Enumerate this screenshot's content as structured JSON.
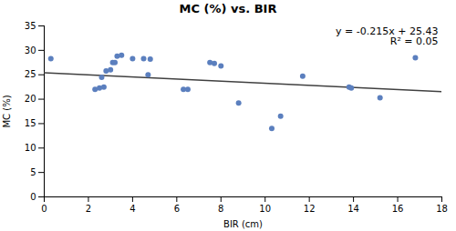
{
  "chart_data": {
    "type": "scatter",
    "title": "MC (%) vs. BIR",
    "xlabel": "BIR (cm)",
    "ylabel": "MC (%)",
    "x": [
      0.3,
      2.3,
      2.5,
      2.6,
      2.7,
      2.8,
      3.0,
      3.1,
      3.2,
      3.3,
      3.5,
      4.0,
      4.5,
      4.7,
      4.8,
      6.3,
      6.5,
      7.5,
      7.7,
      8.0,
      8.8,
      10.3,
      10.7,
      11.7,
      13.8,
      13.9,
      15.2,
      16.8
    ],
    "values": [
      28.3,
      22.0,
      22.3,
      24.5,
      22.5,
      25.8,
      26.0,
      27.5,
      27.5,
      28.8,
      29.0,
      28.3,
      28.3,
      25.0,
      28.2,
      22.0,
      22.0,
      27.5,
      27.3,
      26.8,
      19.2,
      14.0,
      16.5,
      24.7,
      22.5,
      22.3,
      20.3,
      28.5
    ],
    "color": "#5b7fbe",
    "trendline": {
      "x": [
        0,
        18
      ],
      "values": [
        25.43,
        21.56
      ],
      "color": "#404040"
    },
    "annotations": [
      "y = -0.215x + 25.43",
      "R² = 0.05"
    ],
    "xlim": [
      0,
      18
    ],
    "ylim": [
      0,
      35
    ],
    "xticks": [
      0,
      2,
      4,
      6,
      8,
      10,
      12,
      14,
      16,
      18
    ],
    "yticks": [
      0,
      5,
      10,
      15,
      20,
      25,
      30,
      35
    ],
    "grid": false
  }
}
